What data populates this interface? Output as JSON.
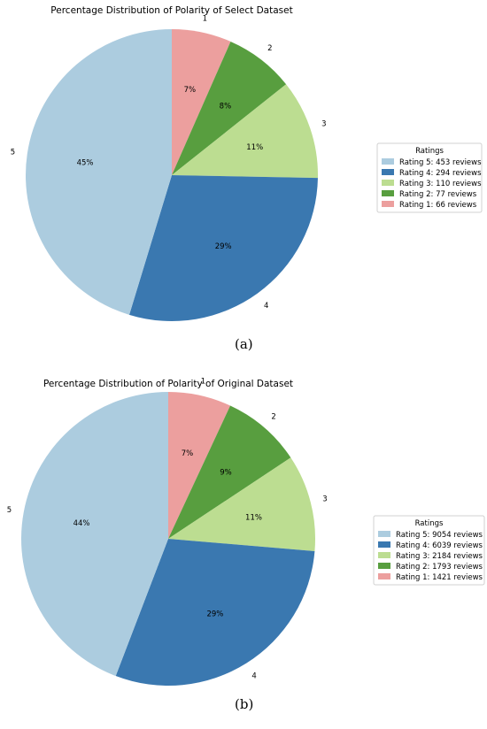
{
  "chart_data": [
    {
      "type": "pie",
      "title": "Percentage Distribution of Polarity of Select Dataset",
      "categories": [
        "1",
        "2",
        "3",
        "4",
        "5"
      ],
      "values": [
        66,
        77,
        110,
        294,
        453
      ],
      "percent_labels": [
        "7%",
        "8%",
        "11%",
        "29%",
        "45%"
      ],
      "colors": [
        "#ec9f9e",
        "#589e3f",
        "#bcdd91",
        "#3a78b0",
        "#acccdf"
      ],
      "legend": {
        "title": "Ratings",
        "placement": "right",
        "entries": [
          "Rating 5: 453 reviews",
          "Rating 4: 294 reviews",
          "Rating 3: 110 reviews",
          "Rating 2: 77 reviews",
          "Rating 1: 66 reviews"
        ],
        "colors": [
          "#acccdf",
          "#3a78b0",
          "#bcdd91",
          "#589e3f",
          "#ec9f9e"
        ]
      },
      "caption": "(a)"
    },
    {
      "type": "pie",
      "title": "Percentage Distribution of Polarity of Original Dataset",
      "categories": [
        "1",
        "2",
        "3",
        "4",
        "5"
      ],
      "values": [
        1421,
        1793,
        2184,
        6039,
        9054
      ],
      "percent_labels": [
        "7%",
        "9%",
        "11%",
        "29%",
        "44%"
      ],
      "colors": [
        "#ec9f9e",
        "#589e3f",
        "#bcdd91",
        "#3a78b0",
        "#acccdf"
      ],
      "legend": {
        "title": "Ratings",
        "placement": "right",
        "entries": [
          "Rating 5: 9054 reviews",
          "Rating 4: 6039 reviews",
          "Rating 3: 2184 reviews",
          "Rating 2: 1793 reviews",
          "Rating 1: 1421 reviews"
        ],
        "colors": [
          "#acccdf",
          "#3a78b0",
          "#bcdd91",
          "#589e3f",
          "#ec9f9e"
        ]
      },
      "caption": "(b)"
    }
  ]
}
